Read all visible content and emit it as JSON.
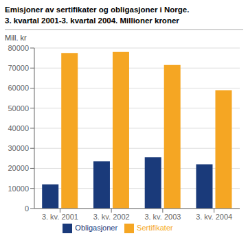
{
  "chart_data": {
    "type": "bar",
    "title": "Emisjoner av sertifikater og obligasjoner i Norge.",
    "subtitle": "3. kvartal 2001-3. kvartal 2004. Millioner kroner",
    "ylabel": "Mill. kr",
    "categories": [
      "3. kv. 2001",
      "3. kv. 2002",
      "3. kv. 2003",
      "3. kv. 2004"
    ],
    "series": [
      {
        "name": "Obligasjoner",
        "color": "#1a3a7a",
        "values": [
          12000,
          23500,
          25500,
          22000
        ]
      },
      {
        "name": "Sertifikater",
        "color": "#f5a623",
        "values": [
          77500,
          78000,
          71500,
          59000
        ]
      }
    ],
    "ylim": [
      0,
      80000
    ],
    "yticks": [
      0,
      10000,
      20000,
      30000,
      40000,
      50000,
      60000,
      70000,
      80000
    ],
    "grid": true,
    "legend": "bottom"
  }
}
